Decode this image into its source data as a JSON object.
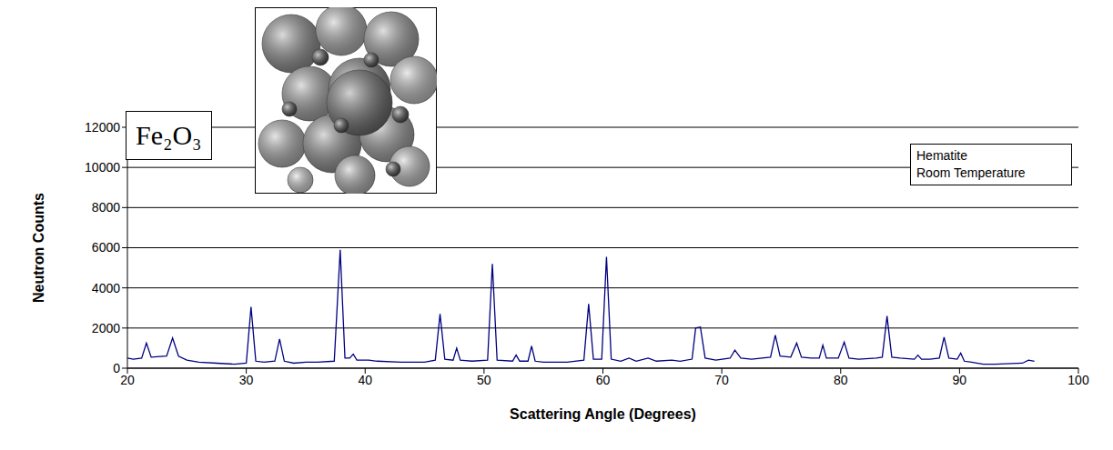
{
  "chart_data": {
    "type": "line",
    "title": "Fe₂O₃",
    "annotation": [
      "Hematite",
      "Room Temperature"
    ],
    "x_label": "Scattering Angle (Degrees)",
    "y_label": "Neutron Counts",
    "color": "#000080",
    "xlim": [
      20,
      100
    ],
    "xticks": [
      20,
      30,
      40,
      50,
      60,
      70,
      80,
      90,
      100
    ],
    "ylim": [
      0,
      12000
    ],
    "yticks": [
      0,
      2000,
      4000,
      6000,
      8000,
      10000,
      12000
    ],
    "grid": true,
    "marker": "none",
    "line_style": "solid",
    "x": [
      20,
      20.5,
      21.2,
      21.6,
      22.0,
      23.3,
      23.8,
      24.3,
      25,
      26,
      27.5,
      29,
      30.0,
      30.4,
      30.8,
      31.5,
      32.4,
      32.8,
      33.2,
      34,
      35,
      36,
      37.4,
      37.9,
      38.3,
      38.7,
      39.0,
      39.3,
      40.3,
      41,
      43,
      45,
      45.9,
      46.3,
      46.7,
      47.4,
      47.7,
      48.0,
      49,
      50.3,
      50.7,
      51.1,
      52.4,
      52.7,
      53.0,
      53.7,
      54.0,
      54.3,
      55,
      57,
      58.4,
      58.8,
      59.2,
      59.9,
      60.3,
      60.7,
      61.5,
      62.2,
      62.8,
      63.8,
      64.5,
      65.8,
      66.5,
      67.5,
      67.8,
      68.2,
      68.6,
      69.5,
      70.7,
      71.1,
      71.6,
      72.5,
      74.1,
      74.5,
      74.9,
      75.8,
      76.3,
      76.7,
      77.5,
      78.2,
      78.5,
      78.8,
      79.8,
      80.3,
      80.7,
      81.5,
      83.0,
      83.5,
      83.9,
      84.3,
      85,
      86.2,
      86.5,
      86.8,
      87.5,
      88.3,
      88.7,
      89.1,
      89.8,
      90.1,
      90.4,
      91,
      92,
      93,
      95.3,
      95.8,
      96.3
    ],
    "values": [
      500,
      450,
      500,
      1250,
      550,
      600,
      1500,
      600,
      400,
      300,
      250,
      200,
      250,
      3050,
      350,
      300,
      350,
      1450,
      350,
      250,
      300,
      300,
      350,
      5900,
      500,
      500,
      700,
      400,
      400,
      350,
      300,
      300,
      400,
      2700,
      450,
      400,
      1000,
      400,
      350,
      400,
      5200,
      400,
      350,
      650,
      350,
      350,
      1100,
      350,
      300,
      300,
      400,
      3200,
      450,
      450,
      5550,
      450,
      350,
      500,
      350,
      500,
      350,
      400,
      350,
      450,
      2000,
      2050,
      500,
      400,
      500,
      900,
      500,
      450,
      550,
      1650,
      600,
      550,
      1250,
      550,
      500,
      500,
      1150,
      500,
      500,
      1300,
      500,
      450,
      500,
      550,
      2600,
      550,
      500,
      450,
      650,
      450,
      450,
      500,
      1550,
      500,
      450,
      750,
      350,
      300,
      200,
      200,
      250,
      400,
      350
    ]
  }
}
